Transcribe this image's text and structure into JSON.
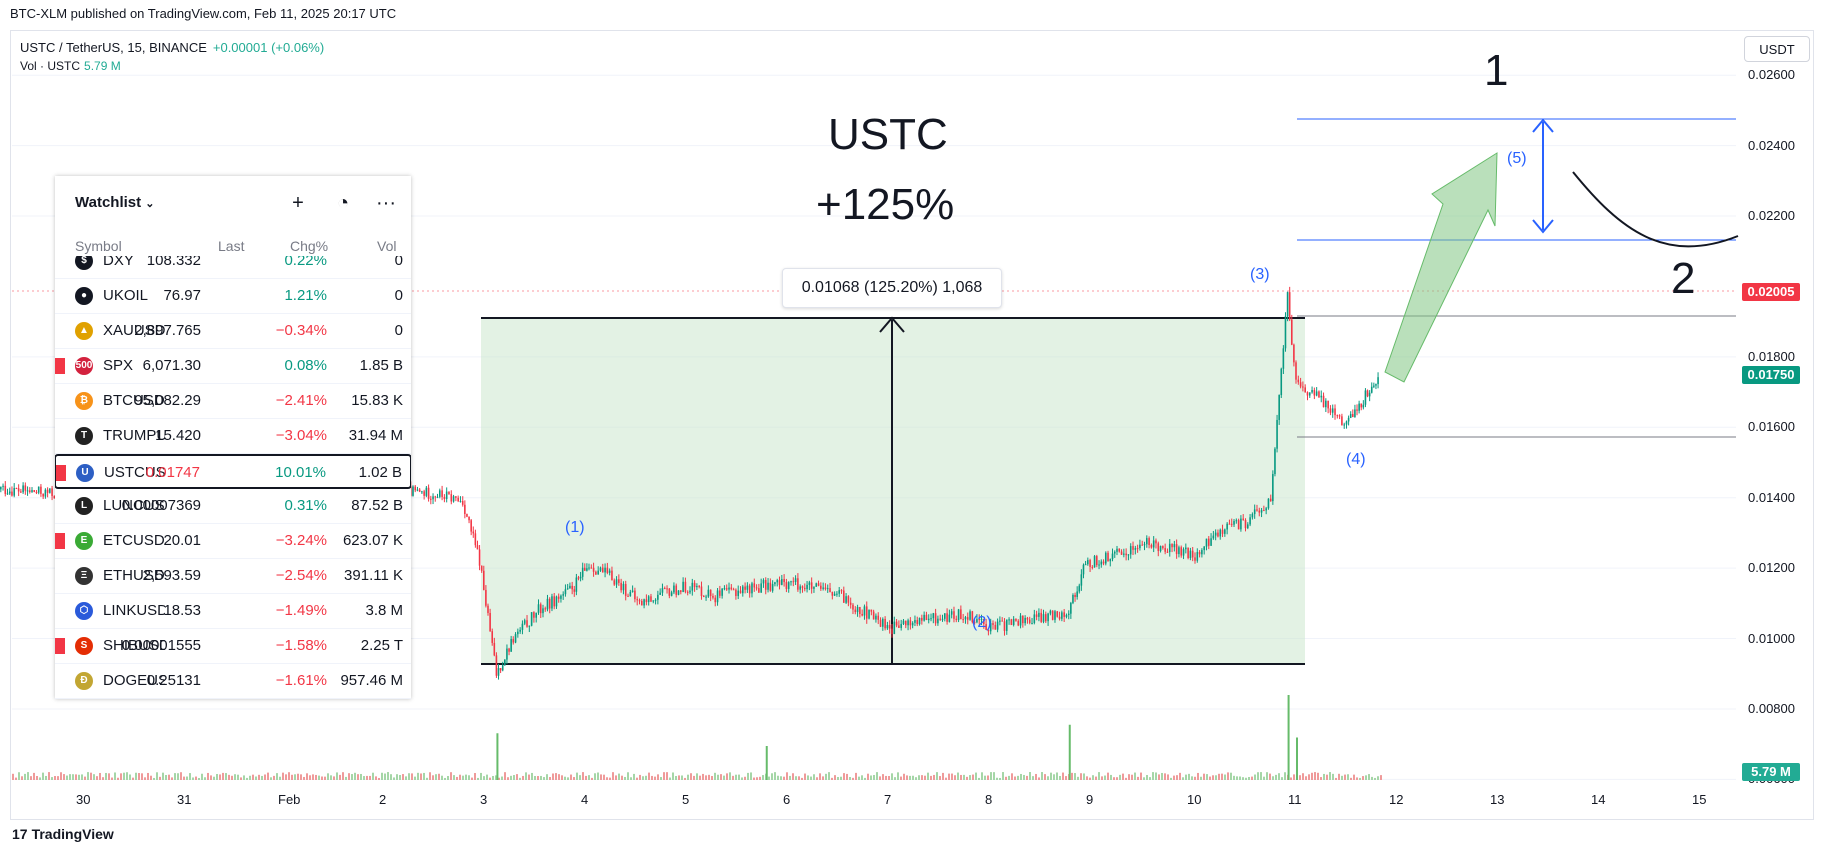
{
  "header": {
    "published": "BTC-XLM published on TradingView.com, Feb 11, 2025 20:17 UTC",
    "symbol_line": "USTC / TetherUS, 15, BINANCE",
    "change": "+0.00001 (+0.06%)",
    "vol_label": "Vol · USTC",
    "vol_value": "5.79 M",
    "currency": "USDT"
  },
  "brand": {
    "logo": "17",
    "name": "TradingView"
  },
  "watchlist": {
    "title": "Watchlist",
    "columns": {
      "symbol": "Symbol",
      "last": "Last",
      "chg": "Chg%",
      "vol": "Vol"
    },
    "rows": [
      {
        "symbol": "DXY",
        "last": "108.332",
        "chg": "0.22%",
        "vol": "0",
        "dir": "pos",
        "icon": "$",
        "color": "#131722",
        "flag": false
      },
      {
        "symbol": "UKOIL",
        "last": "76.97",
        "chg": "1.21%",
        "vol": "0",
        "dir": "pos",
        "icon": "●",
        "color": "#131722",
        "flag": false
      },
      {
        "symbol": "XAUUSD",
        "last": "2,897.765",
        "chg": "−0.34%",
        "vol": "0",
        "dir": "neg",
        "icon": "▲",
        "color": "#e0a100",
        "flag": false
      },
      {
        "symbol": "SPX",
        "last": "6,071.30",
        "chg": "0.08%",
        "vol": "1.85 B",
        "dir": "pos",
        "icon": "500",
        "color": "#d3223e",
        "flag": true
      },
      {
        "symbol": "BTCUSDT",
        "last": "95,082.29",
        "chg": "−2.41%",
        "vol": "15.83 K",
        "dir": "neg",
        "icon": "₿",
        "color": "#f7931a",
        "flag": false
      },
      {
        "symbol": "TRUMPUSDT",
        "last": "15.420",
        "chg": "−3.04%",
        "vol": "31.94 M",
        "dir": "neg",
        "icon": "T",
        "color": "#222222",
        "flag": false
      },
      {
        "symbol": "USTCUSDT",
        "last": "0.01747",
        "chg": "10.01%",
        "vol": "1.02 B",
        "dir": "pos",
        "icon": "U",
        "color": "#2d5fc4",
        "flag": true,
        "selected": true
      },
      {
        "symbol": "LUNCUSDT",
        "last": "0.00007369",
        "chg": "0.31%",
        "vol": "87.52 B",
        "dir": "pos",
        "icon": "L",
        "color": "#222222",
        "flag": false
      },
      {
        "symbol": "ETCUSDT",
        "last": "20.01",
        "chg": "−3.24%",
        "vol": "623.07 K",
        "dir": "neg",
        "icon": "E",
        "color": "#3aaa35",
        "flag": true
      },
      {
        "symbol": "ETHUSDT",
        "last": "2,593.59",
        "chg": "−2.54%",
        "vol": "391.11 K",
        "dir": "neg",
        "icon": "Ξ",
        "color": "#333333",
        "flag": false
      },
      {
        "symbol": "LINKUSDT",
        "last": "18.53",
        "chg": "−1.49%",
        "vol": "3.8 M",
        "dir": "neg",
        "icon": "⬡",
        "color": "#2a5ada",
        "flag": false
      },
      {
        "symbol": "SHIBUSDT",
        "last": "0.00001555",
        "chg": "−1.58%",
        "vol": "2.25 T",
        "dir": "neg",
        "icon": "S",
        "color": "#e42d04",
        "flag": true
      },
      {
        "symbol": "DOGEUSDT",
        "last": "0.25131",
        "chg": "−1.61%",
        "vol": "957.46 M",
        "dir": "neg",
        "icon": "Ð",
        "color": "#c2a633",
        "flag": false
      }
    ]
  },
  "annotations": {
    "title": "USTC",
    "gain": "+125%",
    "measure": "0.01068 (125.20%) 1,068",
    "label_1": "1",
    "label_2": "2",
    "wave_1": "(1)",
    "wave_2": "(2)",
    "wave_3": "(3)",
    "wave_4": "(4)",
    "wave_5": "(5)"
  },
  "chart_data": {
    "type": "candlestick",
    "symbol": "USTC / TetherUS",
    "interval": "15",
    "exchange": "BINANCE",
    "x_ticks": [
      "30",
      "31",
      "Feb",
      "2",
      "3",
      "4",
      "5",
      "6",
      "7",
      "8",
      "9",
      "10",
      "11",
      "12",
      "13",
      "14",
      "15"
    ],
    "y_ticks": [
      "0.02600",
      "0.02400",
      "0.02200",
      "0.01800",
      "0.01600",
      "0.01400",
      "0.01200",
      "0.01000",
      "0.00800",
      "0.00600"
    ],
    "ylim": [
      0.0055,
      0.027
    ],
    "price_path": [
      [
        "Jan 29 00:00",
        0.0143
      ],
      [
        "Jan 29 18:00",
        0.0141
      ],
      [
        "Jan 30 12:00",
        0.0144
      ],
      [
        "Jan 31 06:00",
        0.0143
      ],
      [
        "Feb 1 00:00",
        0.0142
      ],
      [
        "Feb 1 18:00",
        0.0143
      ],
      [
        "Feb 2 12:00",
        0.0141
      ],
      [
        "Feb 2 18:00",
        0.0139
      ],
      [
        "Feb 2 22:00",
        0.0122
      ],
      [
        "Feb 3 02:00",
        0.009
      ],
      [
        "Feb 3 06:00",
        0.01
      ],
      [
        "Feb 3 12:00",
        0.0108
      ],
      [
        "Feb 3 20:00",
        0.0114
      ],
      [
        "Feb 4 00:00",
        0.0121
      ],
      [
        "Feb 4 06:00",
        0.0117
      ],
      [
        "Feb 4 12:00",
        0.011
      ],
      [
        "Feb 4 18:00",
        0.0113
      ],
      [
        "Feb 5 00:00",
        0.0115
      ],
      [
        "Feb 5 06:00",
        0.0112
      ],
      [
        "Feb 5 12:00",
        0.0114
      ],
      [
        "Feb 5 18:00",
        0.0115
      ],
      [
        "Feb 6 00:00",
        0.0116
      ],
      [
        "Feb 6 06:00",
        0.0114
      ],
      [
        "Feb 6 12:00",
        0.0112
      ],
      [
        "Feb 6 18:00",
        0.0107
      ],
      [
        "Feb 7 00:00",
        0.0103
      ],
      [
        "Feb 7 06:00",
        0.0105
      ],
      [
        "Feb 7 12:00",
        0.0106
      ],
      [
        "Feb 7 18:00",
        0.0107
      ],
      [
        "Feb 8 00:00",
        0.0103
      ],
      [
        "Feb 8 06:00",
        0.0105
      ],
      [
        "Feb 8 12:00",
        0.0106
      ],
      [
        "Feb 8 18:00",
        0.0108
      ],
      [
        "Feb 8 22:00",
        0.0121
      ],
      [
        "Feb 9 06:00",
        0.0124
      ],
      [
        "Feb 9 12:00",
        0.0127
      ],
      [
        "Feb 9 18:00",
        0.0126
      ],
      [
        "Feb 10 00:00",
        0.0123
      ],
      [
        "Feb 10 06:00",
        0.0131
      ],
      [
        "Feb 10 12:00",
        0.0133
      ],
      [
        "Feb 10 18:00",
        0.0139
      ],
      [
        "Feb 10 22:00",
        0.0198
      ],
      [
        "Feb 11 00:00",
        0.0172
      ],
      [
        "Feb 11 06:00",
        0.0168
      ],
      [
        "Feb 11 12:00",
        0.0161
      ],
      [
        "Feb 11 16:00",
        0.0168
      ],
      [
        "Feb 11 20:00",
        0.0175
      ]
    ],
    "current_price": "0.01750",
    "marker_price": "0.02005",
    "volume_label": "5.79 M",
    "measure_range": {
      "low": 0.00853,
      "high": 0.01921,
      "change": "0.01068 (125.20%) 1,068"
    },
    "levels": [
      0.0256,
      0.0217,
      0.01921,
      0.0156
    ],
    "volume_spikes": [
      [
        "Feb 3 02:00",
        0.55
      ],
      [
        "Feb 5 18:00",
        0.4
      ],
      [
        "Feb 8 18:00",
        0.65
      ],
      [
        "Feb 10 22:00",
        1.0
      ],
      [
        "Feb 11 00:00",
        0.5
      ]
    ],
    "colors": {
      "up": "#089981",
      "down": "#f23645",
      "box": "#c8e6c9",
      "arrow": "#66bb6a",
      "level": "#2962ff"
    }
  }
}
